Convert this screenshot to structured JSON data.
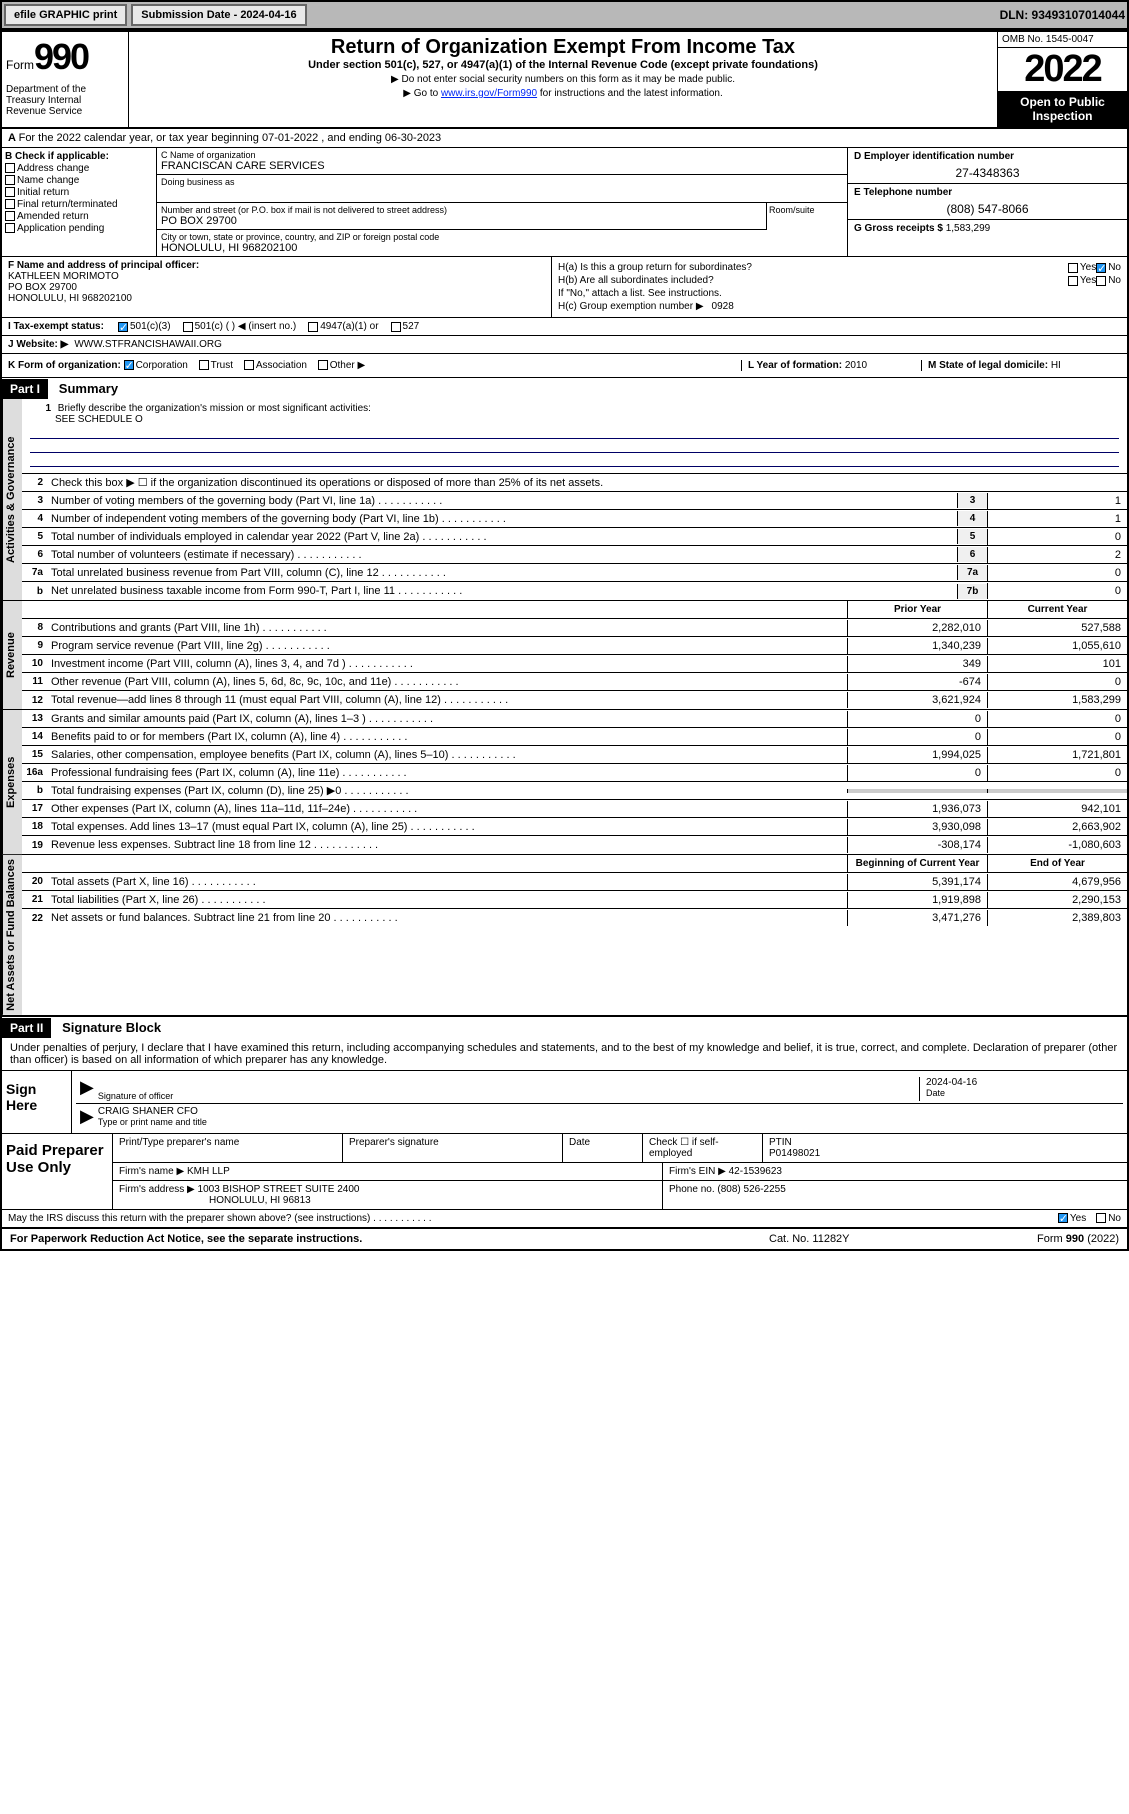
{
  "topbar": {
    "efile": "efile GRAPHIC print",
    "submission_label": "Submission Date - 2024-04-16",
    "dln": "DLN: 93493107014044"
  },
  "header": {
    "form_prefix": "Form",
    "form_number": "990",
    "dept": "Department of the Treasury Internal Revenue Service",
    "title": "Return of Organization Exempt From Income Tax",
    "subtitle": "Under section 501(c), 527, or 4947(a)(1) of the Internal Revenue Code (except private foundations)",
    "note1": "▶ Do not enter social security numbers on this form as it may be made public.",
    "note2_pre": "▶ Go to ",
    "note2_link": "www.irs.gov/Form990",
    "note2_post": " for instructions and the latest information.",
    "omb": "OMB No. 1545-0047",
    "year": "2022",
    "inspection": "Open to Public Inspection"
  },
  "period": {
    "text": "For the 2022 calendar year, or tax year beginning 07-01-2022    , and ending 06-30-2023"
  },
  "section_b": {
    "label": "B Check if applicable:",
    "items": [
      "Address change",
      "Name change",
      "Initial return",
      "Final return/terminated",
      "Amended return",
      "Application pending"
    ]
  },
  "section_c": {
    "name_label": "C Name of organization",
    "name": "FRANCISCAN CARE SERVICES",
    "dba_label": "Doing business as",
    "street_label": "Number and street (or P.O. box if mail is not delivered to street address)",
    "street": "PO BOX 29700",
    "room_label": "Room/suite",
    "city_label": "City or town, state or province, country, and ZIP or foreign postal code",
    "city": "HONOLULU, HI  968202100"
  },
  "section_d": {
    "ein_label": "D Employer identification number",
    "ein": "27-4348363",
    "phone_label": "E Telephone number",
    "phone": "(808) 547-8066",
    "gross_label": "G Gross receipts $",
    "gross": "1,583,299"
  },
  "section_f": {
    "label": "F Name and address of principal officer:",
    "name": "KATHLEEN MORIMOTO",
    "addr1": "PO BOX 29700",
    "addr2": "HONOLULU, HI  968202100"
  },
  "section_h": {
    "ha": "H(a)  Is this a group return for subordinates?",
    "hb": "H(b)  Are all subordinates included?",
    "hb_note": "If \"No,\" attach a list. See instructions.",
    "hc": "H(c)  Group exemption number ▶",
    "hc_val": "0928",
    "yes": "Yes",
    "no": "No"
  },
  "tax_status": {
    "label": "I    Tax-exempt status:",
    "opt1": "501(c)(3)",
    "opt2": "501(c) (  ) ◀ (insert no.)",
    "opt3": "4947(a)(1) or",
    "opt4": "527"
  },
  "website": {
    "label": "J    Website: ▶",
    "val": "WWW.STFRANCISHAWAII.ORG"
  },
  "section_k": {
    "label": "K Form of organization:",
    "corp": "Corporation",
    "trust": "Trust",
    "assoc": "Association",
    "other": "Other ▶",
    "l_label": "L Year of formation:",
    "l_val": "2010",
    "m_label": "M State of legal domicile:",
    "m_val": "HI"
  },
  "part1": {
    "header": "Part I",
    "title": "Summary",
    "q1": "Briefly describe the organization's mission or most significant activities:",
    "q1_val": "SEE SCHEDULE O",
    "q2": "Check this box ▶ ☐  if the organization discontinued its operations or disposed of more than 25% of its net assets.",
    "vert_gov": "Activities & Governance",
    "vert_rev": "Revenue",
    "vert_exp": "Expenses",
    "vert_net": "Net Assets or Fund Balances",
    "prior_year": "Prior Year",
    "current_year": "Current Year",
    "begin_year": "Beginning of Current Year",
    "end_year": "End of Year"
  },
  "gov_lines": [
    {
      "n": "3",
      "t": "Number of voting members of the governing body (Part VI, line 1a)",
      "box": "3",
      "v": "1"
    },
    {
      "n": "4",
      "t": "Number of independent voting members of the governing body (Part VI, line 1b)",
      "box": "4",
      "v": "1"
    },
    {
      "n": "5",
      "t": "Total number of individuals employed in calendar year 2022 (Part V, line 2a)",
      "box": "5",
      "v": "0"
    },
    {
      "n": "6",
      "t": "Total number of volunteers (estimate if necessary)",
      "box": "6",
      "v": "2"
    },
    {
      "n": "7a",
      "t": "Total unrelated business revenue from Part VIII, column (C), line 12",
      "box": "7a",
      "v": "0"
    },
    {
      "n": "b",
      "t": "Net unrelated business taxable income from Form 990-T, Part I, line 11",
      "box": "7b",
      "v": "0"
    }
  ],
  "rev_lines": [
    {
      "n": "8",
      "t": "Contributions and grants (Part VIII, line 1h)",
      "p": "2,282,010",
      "c": "527,588"
    },
    {
      "n": "9",
      "t": "Program service revenue (Part VIII, line 2g)",
      "p": "1,340,239",
      "c": "1,055,610"
    },
    {
      "n": "10",
      "t": "Investment income (Part VIII, column (A), lines 3, 4, and 7d )",
      "p": "349",
      "c": "101"
    },
    {
      "n": "11",
      "t": "Other revenue (Part VIII, column (A), lines 5, 6d, 8c, 9c, 10c, and 11e)",
      "p": "-674",
      "c": "0"
    },
    {
      "n": "12",
      "t": "Total revenue—add lines 8 through 11 (must equal Part VIII, column (A), line 12)",
      "p": "3,621,924",
      "c": "1,583,299"
    }
  ],
  "exp_lines": [
    {
      "n": "13",
      "t": "Grants and similar amounts paid (Part IX, column (A), lines 1–3 )",
      "p": "0",
      "c": "0"
    },
    {
      "n": "14",
      "t": "Benefits paid to or for members (Part IX, column (A), line 4)",
      "p": "0",
      "c": "0"
    },
    {
      "n": "15",
      "t": "Salaries, other compensation, employee benefits (Part IX, column (A), lines 5–10)",
      "p": "1,994,025",
      "c": "1,721,801"
    },
    {
      "n": "16a",
      "t": "Professional fundraising fees (Part IX, column (A), line 11e)",
      "p": "0",
      "c": "0"
    },
    {
      "n": "b",
      "t": "Total fundraising expenses (Part IX, column (D), line 25) ▶0",
      "p": "",
      "c": ""
    },
    {
      "n": "17",
      "t": "Other expenses (Part IX, column (A), lines 11a–11d, 11f–24e)",
      "p": "1,936,073",
      "c": "942,101"
    },
    {
      "n": "18",
      "t": "Total expenses. Add lines 13–17 (must equal Part IX, column (A), line 25)",
      "p": "3,930,098",
      "c": "2,663,902"
    },
    {
      "n": "19",
      "t": "Revenue less expenses. Subtract line 18 from line 12",
      "p": "-308,174",
      "c": "-1,080,603"
    }
  ],
  "net_lines": [
    {
      "n": "20",
      "t": "Total assets (Part X, line 16)",
      "p": "5,391,174",
      "c": "4,679,956"
    },
    {
      "n": "21",
      "t": "Total liabilities (Part X, line 26)",
      "p": "1,919,898",
      "c": "2,290,153"
    },
    {
      "n": "22",
      "t": "Net assets or fund balances. Subtract line 21 from line 20",
      "p": "3,471,276",
      "c": "2,389,803"
    }
  ],
  "part2": {
    "header": "Part II",
    "title": "Signature Block",
    "declaration": "Under penalties of perjury, I declare that I have examined this return, including accompanying schedules and statements, and to the best of my knowledge and belief, it is true, correct, and complete. Declaration of preparer (other than officer) is based on all information of which preparer has any knowledge.",
    "sign_here": "Sign Here",
    "sig_officer": "Signature of officer",
    "date_label": "Date",
    "date_val": "2024-04-16",
    "officer_name": "CRAIG SHANER CFO",
    "type_name": "Type or print name and title",
    "paid_prep": "Paid Preparer Use Only",
    "prep_name_label": "Print/Type preparer's name",
    "prep_sig_label": "Preparer's signature",
    "check_if": "Check ☐ if self-employed",
    "ptin_label": "PTIN",
    "ptin": "P01498021",
    "firm_name_label": "Firm's name    ▶",
    "firm_name": "KMH LLP",
    "firm_ein_label": "Firm's EIN ▶",
    "firm_ein": "42-1539623",
    "firm_addr_label": "Firm's address ▶",
    "firm_addr": "1003 BISHOP STREET SUITE 2400",
    "firm_city": "HONOLULU, HI  96813",
    "phone_label": "Phone no.",
    "phone": "(808) 526-2255",
    "discuss": "May the IRS discuss this return with the preparer shown above? (see instructions)"
  },
  "footer": {
    "left": "For Paperwork Reduction Act Notice, see the separate instructions.",
    "mid": "Cat. No. 11282Y",
    "right": "Form 990 (2022)"
  }
}
